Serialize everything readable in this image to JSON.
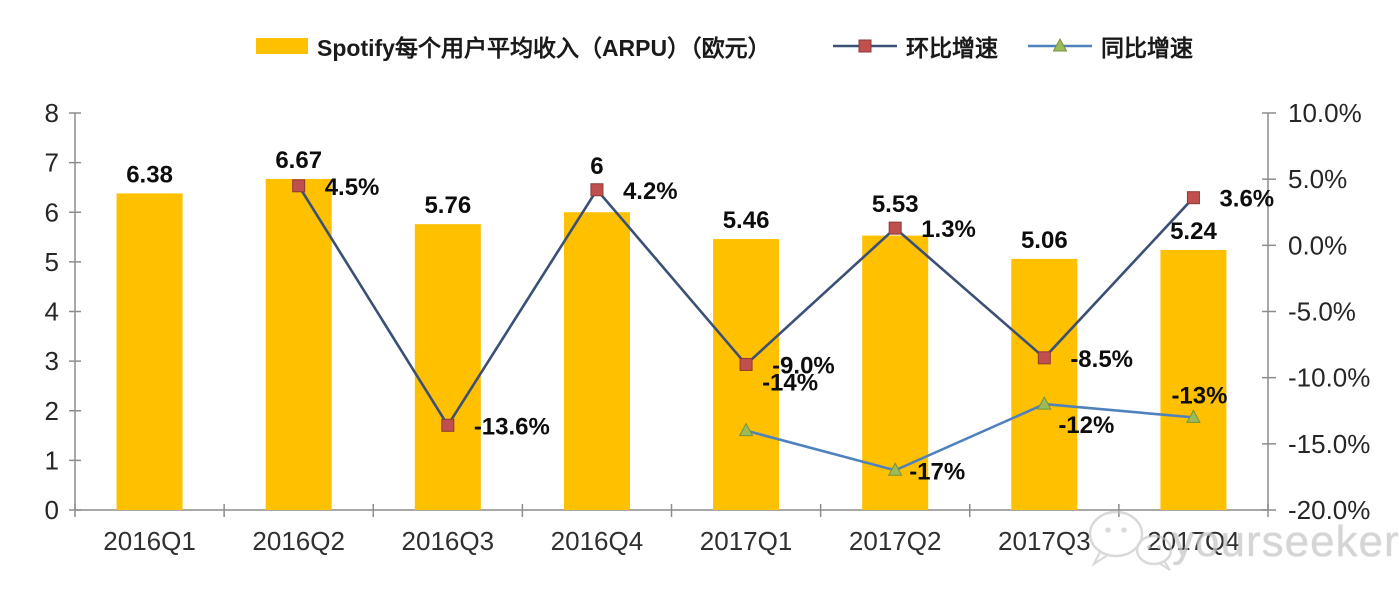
{
  "legend": {
    "bar": "Spotify每个用户平均收入（ARPU）（欧元）",
    "qoq": "环比增速",
    "yoy": "同比增速"
  },
  "watermark": {
    "text": "yourseeker",
    "icon": "wechat-chat-bubbles"
  },
  "colors": {
    "bar": "#FFC000",
    "qoq_line": "#3B5076",
    "qoq_marker": "#C0504D",
    "qoq_marker_border": "#8B3A36",
    "yoy_line": "#4F81BD",
    "yoy_marker": "#9BBB59",
    "yoy_marker_border": "#76923C",
    "axis": "#8C8C8C",
    "watermark": "#c7c7c7"
  },
  "chart_data": {
    "type": "combo-bar-line",
    "title": "",
    "grid": false,
    "legend_position": "top",
    "categories": [
      "2016Q1",
      "2016Q2",
      "2016Q3",
      "2016Q4",
      "2017Q1",
      "2017Q2",
      "2017Q3",
      "2017Q4"
    ],
    "series": [
      {
        "name": "Spotify每个用户平均收入（ARPU）（欧元）",
        "type": "bar",
        "axis": "left",
        "color": "#FFC000",
        "values": [
          6.38,
          6.67,
          5.76,
          6,
          5.46,
          5.53,
          5.06,
          5.24
        ],
        "labels": [
          "6.38",
          "6.67",
          "5.76",
          "6",
          "5.46",
          "5.53",
          "5.06",
          "5.24"
        ]
      },
      {
        "name": "环比增速",
        "type": "line",
        "axis": "right",
        "marker": "square",
        "color": "#3B5076",
        "marker_color": "#C0504D",
        "values": [
          null,
          4.5,
          -13.6,
          4.2,
          -9.0,
          1.3,
          -8.5,
          3.6
        ],
        "labels": [
          null,
          "4.5%",
          "-13.6%",
          "4.2%",
          "-9.0%",
          "1.3%",
          "-8.5%",
          "3.6%"
        ]
      },
      {
        "name": "同比增速",
        "type": "line",
        "axis": "right",
        "marker": "triangle",
        "color": "#4F81BD",
        "marker_color": "#9BBB59",
        "values": [
          null,
          null,
          null,
          null,
          -14,
          -17,
          -12,
          -13
        ],
        "labels": [
          null,
          null,
          null,
          null,
          "-14%",
          "-17%",
          "-12%",
          "-13%"
        ]
      }
    ],
    "left_axis": {
      "min": 0,
      "max": 8,
      "tick_step": 1,
      "tick_labels": [
        "0",
        "1",
        "2",
        "3",
        "4",
        "5",
        "6",
        "7",
        "8"
      ]
    },
    "right_axis": {
      "min": -20,
      "max": 10,
      "tick_step": 5,
      "tick_labels": [
        "10.0%",
        "5.0%",
        "0.0%",
        "-5.0%",
        "-10.0%",
        "-15.0%",
        "-20.0%"
      ]
    }
  }
}
